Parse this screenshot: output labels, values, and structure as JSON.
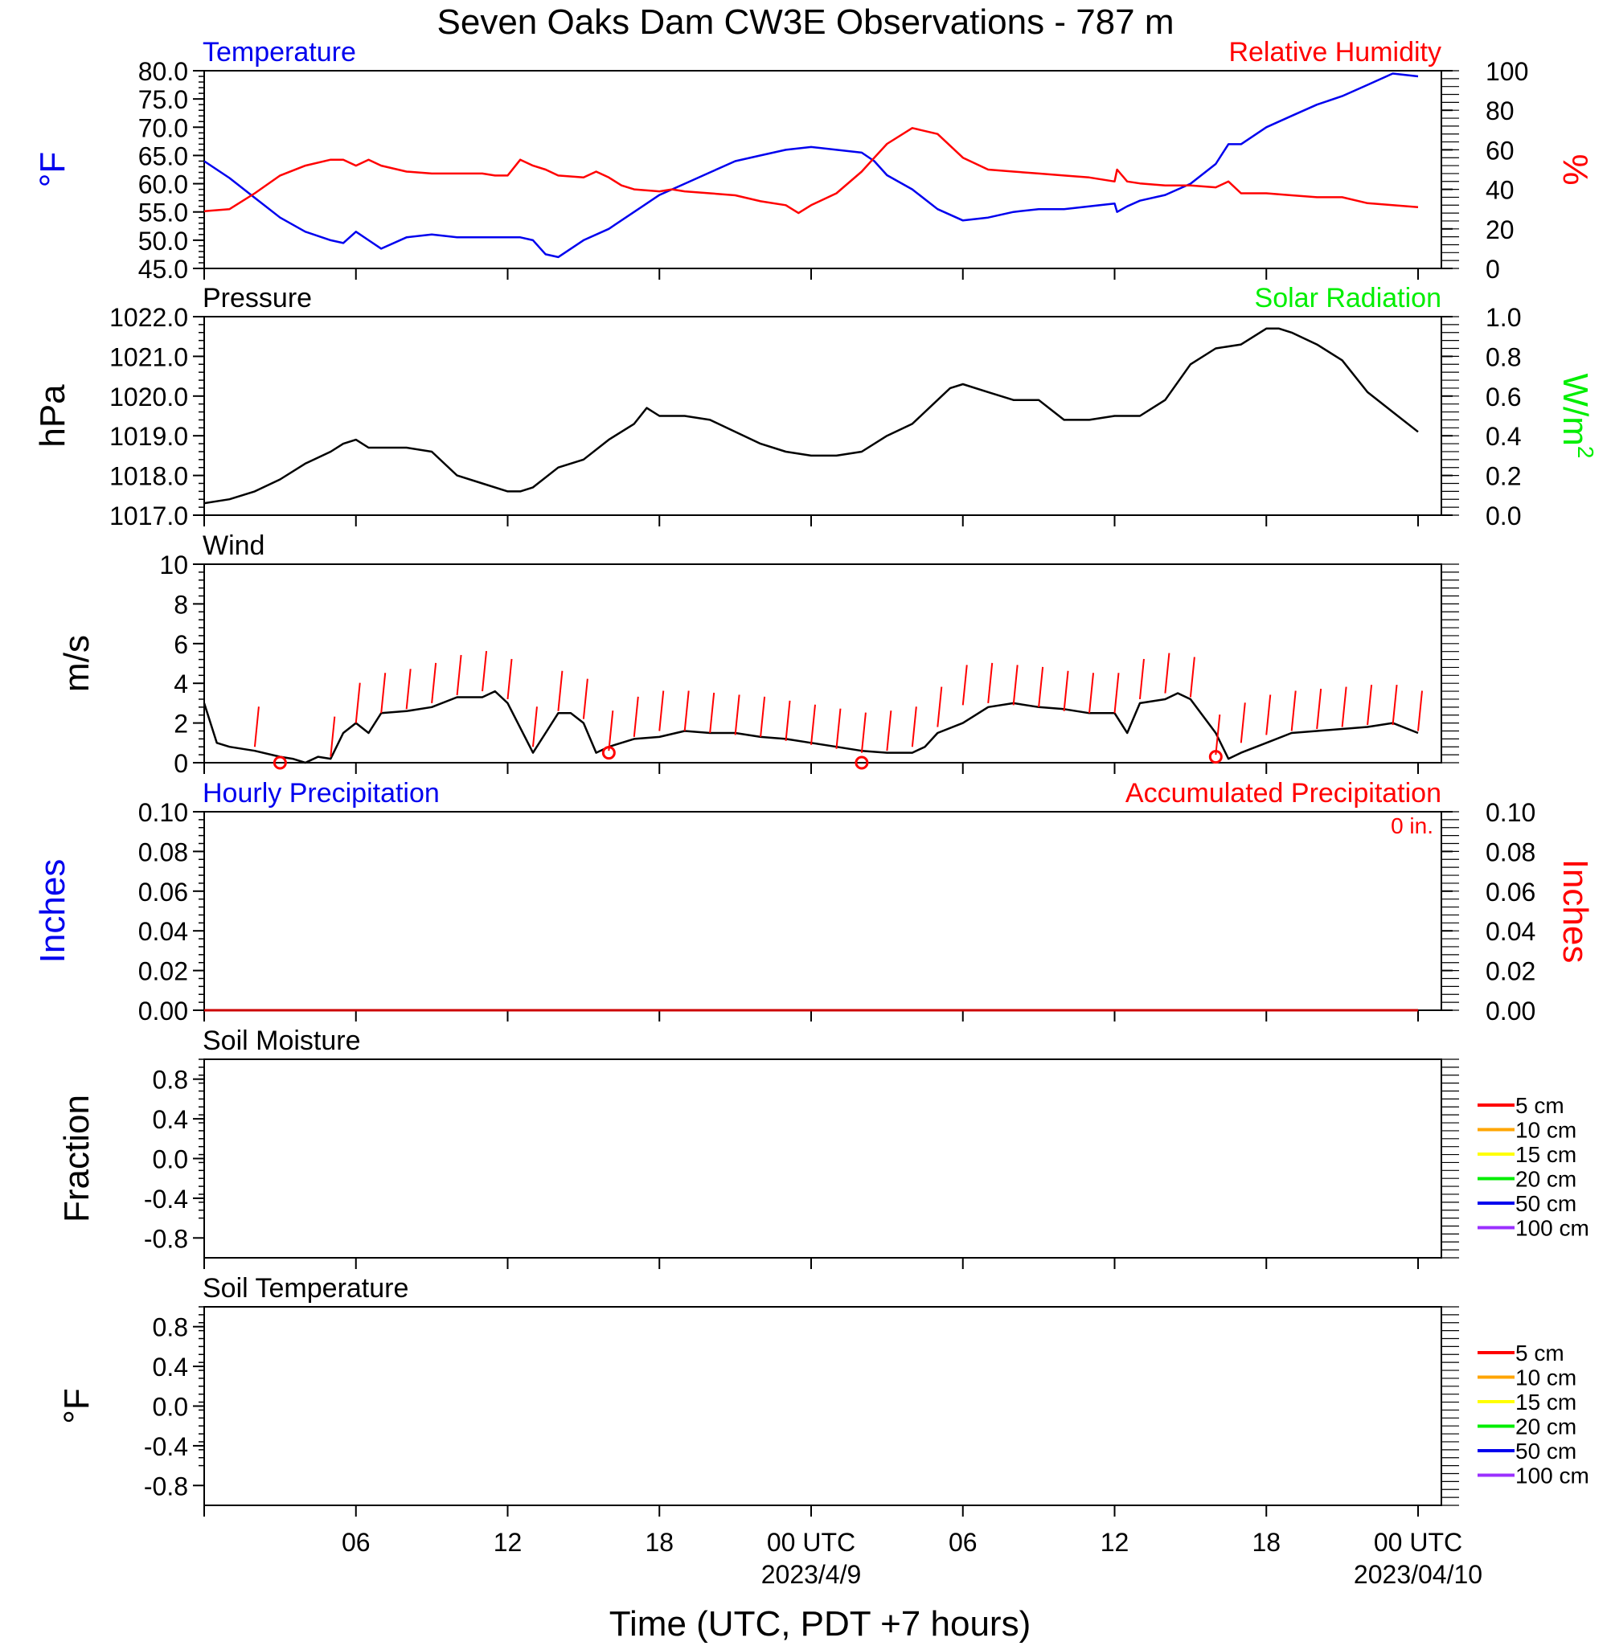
{
  "title": "Seven Oaks Dam CW3E Observations - 787 m",
  "xlabel": "Time (UTC, PDT +7 hours)",
  "x_ticks": [
    {
      "label": "06",
      "hour": 6
    },
    {
      "label": "12",
      "hour": 12
    },
    {
      "label": "18",
      "hour": 18
    },
    {
      "label": "00 UTC",
      "hour": 24,
      "sub": "2023/4/9"
    },
    {
      "label": "06",
      "hour": 30
    },
    {
      "label": "12",
      "hour": 36
    },
    {
      "label": "18",
      "hour": 42
    },
    {
      "label": "00 UTC",
      "hour": 48,
      "sub": "2023/04/10"
    }
  ],
  "colors": {
    "temperature": "#0000ee",
    "humidity": "#ff0000",
    "solar": "#00ee00",
    "black": "#000000"
  },
  "chart_data": [
    {
      "type": "line",
      "left_title": "Temperature",
      "right_title": "Relative Humidity",
      "ylabel": "°F",
      "ylabel_right": "%",
      "ylim": [
        45,
        80
      ],
      "yticks": [
        "80.0",
        "75.0",
        "70.0",
        "65.0",
        "60.0",
        "55.0",
        "50.0",
        "45.0"
      ],
      "ylim_right": [
        0,
        100
      ],
      "yticks_right": [
        "100",
        "80",
        "60",
        "40",
        "20",
        "0"
      ],
      "x_range_hours": [
        0,
        48
      ],
      "series": [
        {
          "name": "Temperature",
          "axis": "left",
          "color": "#0000ee",
          "x": [
            0,
            1,
            2,
            3,
            4,
            5,
            5.5,
            6,
            6.5,
            7,
            8,
            9,
            10,
            11,
            12,
            12.5,
            13,
            13.5,
            14,
            15,
            16,
            17,
            18,
            19,
            20,
            21,
            22,
            23,
            24,
            25,
            26,
            26.5,
            27,
            28,
            29,
            30,
            31,
            32,
            33,
            34,
            35,
            36,
            36.1,
            36.5,
            37,
            38,
            39,
            40,
            40.5,
            41,
            42,
            43,
            44,
            45,
            46,
            47,
            48
          ],
          "y": [
            64,
            61,
            57.5,
            54,
            51.5,
            50,
            49.5,
            51.5,
            50,
            48.5,
            50.5,
            51,
            50.5,
            50.5,
            50.5,
            50.5,
            50,
            47.5,
            47,
            50,
            52,
            55,
            58,
            60,
            62,
            64,
            65,
            66,
            66.5,
            66,
            65.5,
            64,
            61.5,
            59,
            55.5,
            53.5,
            54,
            55,
            55.5,
            55.5,
            56,
            56.5,
            55,
            56,
            57,
            58,
            60,
            63.5,
            67,
            67,
            70,
            72,
            74,
            75.5,
            77.5,
            79.5,
            79
          ]
        },
        {
          "name": "Relative Humidity",
          "axis": "right",
          "color": "#ff0000",
          "x": [
            0,
            1,
            2,
            3,
            4,
            5,
            5.5,
            6,
            6.5,
            7,
            8,
            9,
            10,
            11,
            11.5,
            12,
            12.5,
            13,
            13.5,
            14,
            15,
            15.5,
            16,
            16.5,
            17,
            18,
            18.5,
            19,
            20,
            21,
            22,
            23,
            23.5,
            24,
            25,
            26,
            26.5,
            27,
            28,
            29,
            30,
            31,
            32,
            33,
            34,
            35,
            36,
            36.1,
            36.5,
            37,
            38,
            39,
            40,
            40.5,
            41,
            42,
            43,
            44,
            45,
            46,
            47,
            48
          ],
          "y": [
            29,
            30,
            38,
            47,
            52,
            55,
            55,
            52,
            55,
            52,
            49,
            48,
            48,
            48,
            47,
            47,
            55,
            52,
            50,
            47,
            46,
            49,
            46,
            42,
            40,
            39,
            40,
            39,
            38,
            37,
            34,
            32,
            28,
            32,
            38,
            49,
            56,
            63,
            71,
            68,
            56,
            50,
            49,
            48,
            47,
            46,
            44,
            50,
            44,
            43,
            42,
            42,
            41,
            44,
            38,
            38,
            37,
            36,
            36,
            33,
            32,
            31
          ]
        }
      ]
    },
    {
      "type": "line",
      "left_title": "Pressure",
      "right_title": "Solar Radiation",
      "ylabel": "hPa",
      "ylabel_right": "W/m",
      "ylabel_right_sup": "2",
      "ylim": [
        1017,
        1022
      ],
      "yticks": [
        "1022.0",
        "1021.0",
        "1020.0",
        "1019.0",
        "1018.0",
        "1017.0"
      ],
      "ylim_right": [
        0,
        1
      ],
      "yticks_right": [
        "1.0",
        "0.8",
        "0.6",
        "0.4",
        "0.2",
        "0.0"
      ],
      "x_range_hours": [
        0,
        48
      ],
      "series": [
        {
          "name": "Pressure",
          "axis": "left",
          "color": "#000000",
          "x": [
            0,
            1,
            2,
            3,
            4,
            5,
            5.5,
            6,
            6.5,
            7,
            8,
            9,
            10,
            11,
            12,
            12.5,
            13,
            14,
            15,
            16,
            17,
            17.5,
            18,
            19,
            20,
            21,
            22,
            23,
            24,
            25,
            26,
            27,
            28,
            29,
            29.5,
            30,
            31,
            32,
            33,
            34,
            35,
            36,
            37,
            38,
            39,
            40,
            41,
            42,
            42.5,
            43,
            44,
            45,
            46,
            47,
            48
          ],
          "y": [
            1017.3,
            1017.4,
            1017.6,
            1017.9,
            1018.3,
            1018.6,
            1018.8,
            1018.9,
            1018.7,
            1018.7,
            1018.7,
            1018.6,
            1018.0,
            1017.8,
            1017.6,
            1017.6,
            1017.7,
            1018.2,
            1018.4,
            1018.9,
            1019.3,
            1019.7,
            1019.5,
            1019.5,
            1019.4,
            1019.1,
            1018.8,
            1018.6,
            1018.5,
            1018.5,
            1018.6,
            1019.0,
            1019.3,
            1019.9,
            1020.2,
            1020.3,
            1020.1,
            1019.9,
            1019.9,
            1019.4,
            1019.4,
            1019.5,
            1019.5,
            1019.9,
            1020.8,
            1021.2,
            1021.3,
            1021.7,
            1021.7,
            1021.6,
            1021.3,
            1020.9,
            1020.1,
            1019.6,
            1019.1
          ]
        },
        {
          "name": "Solar Radiation",
          "axis": "right",
          "color": "#00ee00",
          "x": [],
          "y": []
        }
      ]
    },
    {
      "type": "line",
      "left_title": "Wind",
      "ylabel": "m/s",
      "ylim": [
        0,
        10
      ],
      "yticks": [
        "10",
        "8",
        "6",
        "4",
        "2",
        "0"
      ],
      "x_range_hours": [
        0,
        48
      ],
      "series": [
        {
          "name": "Wind",
          "axis": "left",
          "color": "#000000",
          "x": [
            0,
            0.5,
            1,
            2,
            3,
            3.5,
            4,
            4.5,
            5,
            5.5,
            6,
            6.5,
            7,
            8,
            9,
            10,
            11,
            11.5,
            12,
            13,
            13.5,
            14,
            14.5,
            15,
            15.5,
            16,
            17,
            18,
            19,
            20,
            21,
            22,
            23,
            24,
            25,
            26,
            27,
            28,
            28.5,
            29,
            30,
            31,
            32,
            33,
            34,
            35,
            36,
            36.5,
            37,
            38,
            38.5,
            39,
            40,
            40.5,
            41,
            42,
            43,
            44,
            45,
            46,
            47,
            48
          ],
          "y": [
            3,
            1,
            0.8,
            0.6,
            0.3,
            0.2,
            0,
            0.3,
            0.2,
            1.5,
            2,
            1.5,
            2.5,
            2.6,
            2.8,
            3.3,
            3.3,
            3.6,
            3.0,
            0.5,
            1.5,
            2.5,
            2.5,
            2.0,
            0.5,
            0.8,
            1.2,
            1.3,
            1.6,
            1.5,
            1.5,
            1.3,
            1.2,
            1.0,
            0.8,
            0.6,
            0.5,
            0.5,
            0.8,
            1.5,
            2.0,
            2.8,
            3.0,
            2.8,
            2.7,
            2.5,
            2.5,
            1.5,
            3.0,
            3.2,
            3.5,
            3.2,
            1.5,
            0.2,
            0.5,
            1.0,
            1.5,
            1.6,
            1.7,
            1.8,
            2.0,
            1.5
          ]
        },
        {
          "name": "Wind barbs",
          "axis": "left",
          "color": "#ff0000",
          "symbol": "barb",
          "x": [
            2,
            5,
            6,
            7,
            8,
            9,
            10,
            11,
            12,
            13,
            14,
            15,
            16,
            17,
            18,
            19,
            20,
            21,
            22,
            23,
            24,
            25,
            26,
            27,
            28,
            29,
            30,
            31,
            32,
            33,
            34,
            35,
            36,
            37,
            38,
            39,
            40,
            41,
            42,
            43,
            44,
            45,
            46,
            47,
            48
          ],
          "y": [
            0.8,
            0.3,
            2.0,
            2.5,
            2.7,
            3.0,
            3.4,
            3.6,
            3.2,
            0.8,
            2.6,
            2.2,
            0.6,
            1.3,
            1.6,
            1.6,
            1.5,
            1.4,
            1.3,
            1.1,
            0.9,
            0.7,
            0.5,
            0.6,
            0.8,
            1.8,
            2.9,
            3.0,
            2.9,
            2.8,
            2.6,
            2.5,
            2.5,
            3.2,
            3.5,
            3.3,
            0.4,
            1.0,
            1.4,
            1.6,
            1.7,
            1.8,
            1.9,
            1.9,
            1.6
          ]
        },
        {
          "name": "Calm",
          "axis": "left",
          "color": "#ff0000",
          "symbol": "circle",
          "x": [
            3,
            16,
            26,
            40
          ],
          "y": [
            0,
            0.5,
            0,
            0.3
          ]
        }
      ]
    },
    {
      "type": "line",
      "left_title": "Hourly Precipitation",
      "right_title": "Accumulated Precipitation",
      "annotation": "0 in.",
      "ylabel": "Inches",
      "ylabel_right": "Inches",
      "ylim": [
        0,
        0.1
      ],
      "yticks": [
        "0.10",
        "0.08",
        "0.06",
        "0.04",
        "0.02",
        "0.00"
      ],
      "ylim_right": [
        0,
        0.1
      ],
      "yticks_right": [
        "0.10",
        "0.08",
        "0.06",
        "0.04",
        "0.02",
        "0.00"
      ],
      "x_range_hours": [
        0,
        48
      ],
      "series": [
        {
          "name": "Hourly Precipitation",
          "axis": "left",
          "color": "#0000ee",
          "x": [
            0,
            48
          ],
          "y": [
            0,
            0
          ]
        },
        {
          "name": "Accumulated Precipitation",
          "axis": "right",
          "color": "#cc0000",
          "x": [
            0,
            48
          ],
          "y": [
            0,
            0
          ]
        }
      ]
    },
    {
      "type": "line",
      "left_title": "Soil Moisture",
      "ylabel": "Fraction",
      "ylim": [
        -1,
        1
      ],
      "yticks": [
        "0.8",
        "0.4",
        "0.0",
        "-0.4",
        "-0.8"
      ],
      "x_range_hours": [
        0,
        48
      ],
      "legend": [
        {
          "name": "5 cm",
          "color": "#ff0000"
        },
        {
          "name": "10 cm",
          "color": "#ffa500"
        },
        {
          "name": "15 cm",
          "color": "#ffff00"
        },
        {
          "name": "20 cm",
          "color": "#00ee00"
        },
        {
          "name": "50 cm",
          "color": "#0000ee"
        },
        {
          "name": "100 cm",
          "color": "#9b30ff"
        }
      ],
      "series": []
    },
    {
      "type": "line",
      "left_title": "Soil Temperature",
      "ylabel": "°F",
      "ylim": [
        -1,
        1
      ],
      "yticks": [
        "0.8",
        "0.4",
        "0.0",
        "-0.4",
        "-0.8"
      ],
      "x_range_hours": [
        0,
        48
      ],
      "legend": [
        {
          "name": "5 cm",
          "color": "#ff0000"
        },
        {
          "name": "10 cm",
          "color": "#ffa500"
        },
        {
          "name": "15 cm",
          "color": "#ffff00"
        },
        {
          "name": "20 cm",
          "color": "#00ee00"
        },
        {
          "name": "50 cm",
          "color": "#0000ee"
        },
        {
          "name": "100 cm",
          "color": "#9b30ff"
        }
      ],
      "series": []
    }
  ]
}
